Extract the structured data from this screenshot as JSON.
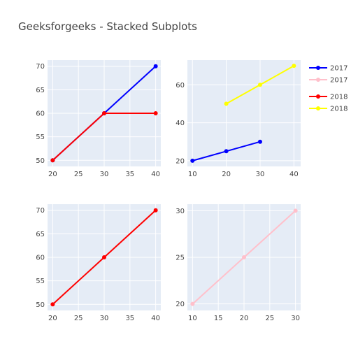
{
  "title": "Geeksforgeeks - Stacked Subplots",
  "colors": {
    "background": "#ffffff",
    "plot_bg": "#e5ecf6",
    "grid": "#ffffff",
    "text": "#444444"
  },
  "chart_data": [
    {
      "type": "line",
      "position": "top-left",
      "xlim": [
        19,
        41
      ],
      "ylim": [
        48.7,
        71.3
      ],
      "xticks": [
        20,
        25,
        30,
        35,
        40
      ],
      "yticks": [
        50,
        55,
        60,
        65,
        70
      ],
      "series": [
        {
          "name": "2017",
          "color": "#0000ff",
          "x": [
            20,
            30,
            40
          ],
          "y": [
            50,
            60,
            70
          ]
        },
        {
          "name": "2018",
          "color": "#ff0000",
          "x": [
            20,
            30,
            40
          ],
          "y": [
            50,
            60,
            60
          ]
        }
      ]
    },
    {
      "type": "line",
      "position": "top-right",
      "xlim": [
        8.5,
        42
      ],
      "ylim": [
        17,
        73
      ],
      "xticks": [
        10,
        20,
        30,
        40
      ],
      "yticks": [
        20,
        40,
        60
      ],
      "series": [
        {
          "name": "2017",
          "color": "#0000ff",
          "x": [
            10,
            20,
            30
          ],
          "y": [
            20,
            25,
            30
          ]
        },
        {
          "name": "2018",
          "color": "#ffff00",
          "x": [
            20,
            30,
            40
          ],
          "y": [
            50,
            60,
            70
          ]
        }
      ]
    },
    {
      "type": "line",
      "position": "bottom-left",
      "xlim": [
        19,
        41
      ],
      "ylim": [
        48.7,
        71.3
      ],
      "xticks": [
        20,
        25,
        30,
        35,
        40
      ],
      "yticks": [
        50,
        55,
        60,
        65,
        70
      ],
      "series": [
        {
          "name": "2018",
          "color": "#ff0000",
          "x": [
            20,
            30,
            40
          ],
          "y": [
            50,
            60,
            70
          ]
        }
      ]
    },
    {
      "type": "line",
      "position": "bottom-right",
      "xlim": [
        9,
        31
      ],
      "ylim": [
        19.3,
        30.7
      ],
      "xticks": [
        10,
        15,
        20,
        25,
        30
      ],
      "yticks": [
        20,
        25,
        30
      ],
      "series": [
        {
          "name": "2017",
          "color": "#ffc0cb",
          "x": [
            10,
            20,
            30
          ],
          "y": [
            20,
            25,
            30
          ]
        }
      ]
    }
  ],
  "legend": [
    {
      "label": "2017",
      "color": "#0000ff"
    },
    {
      "label": "2017",
      "color": "#ffc0cb"
    },
    {
      "label": "2018",
      "color": "#ff0000"
    },
    {
      "label": "2018",
      "color": "#ffff00"
    }
  ]
}
